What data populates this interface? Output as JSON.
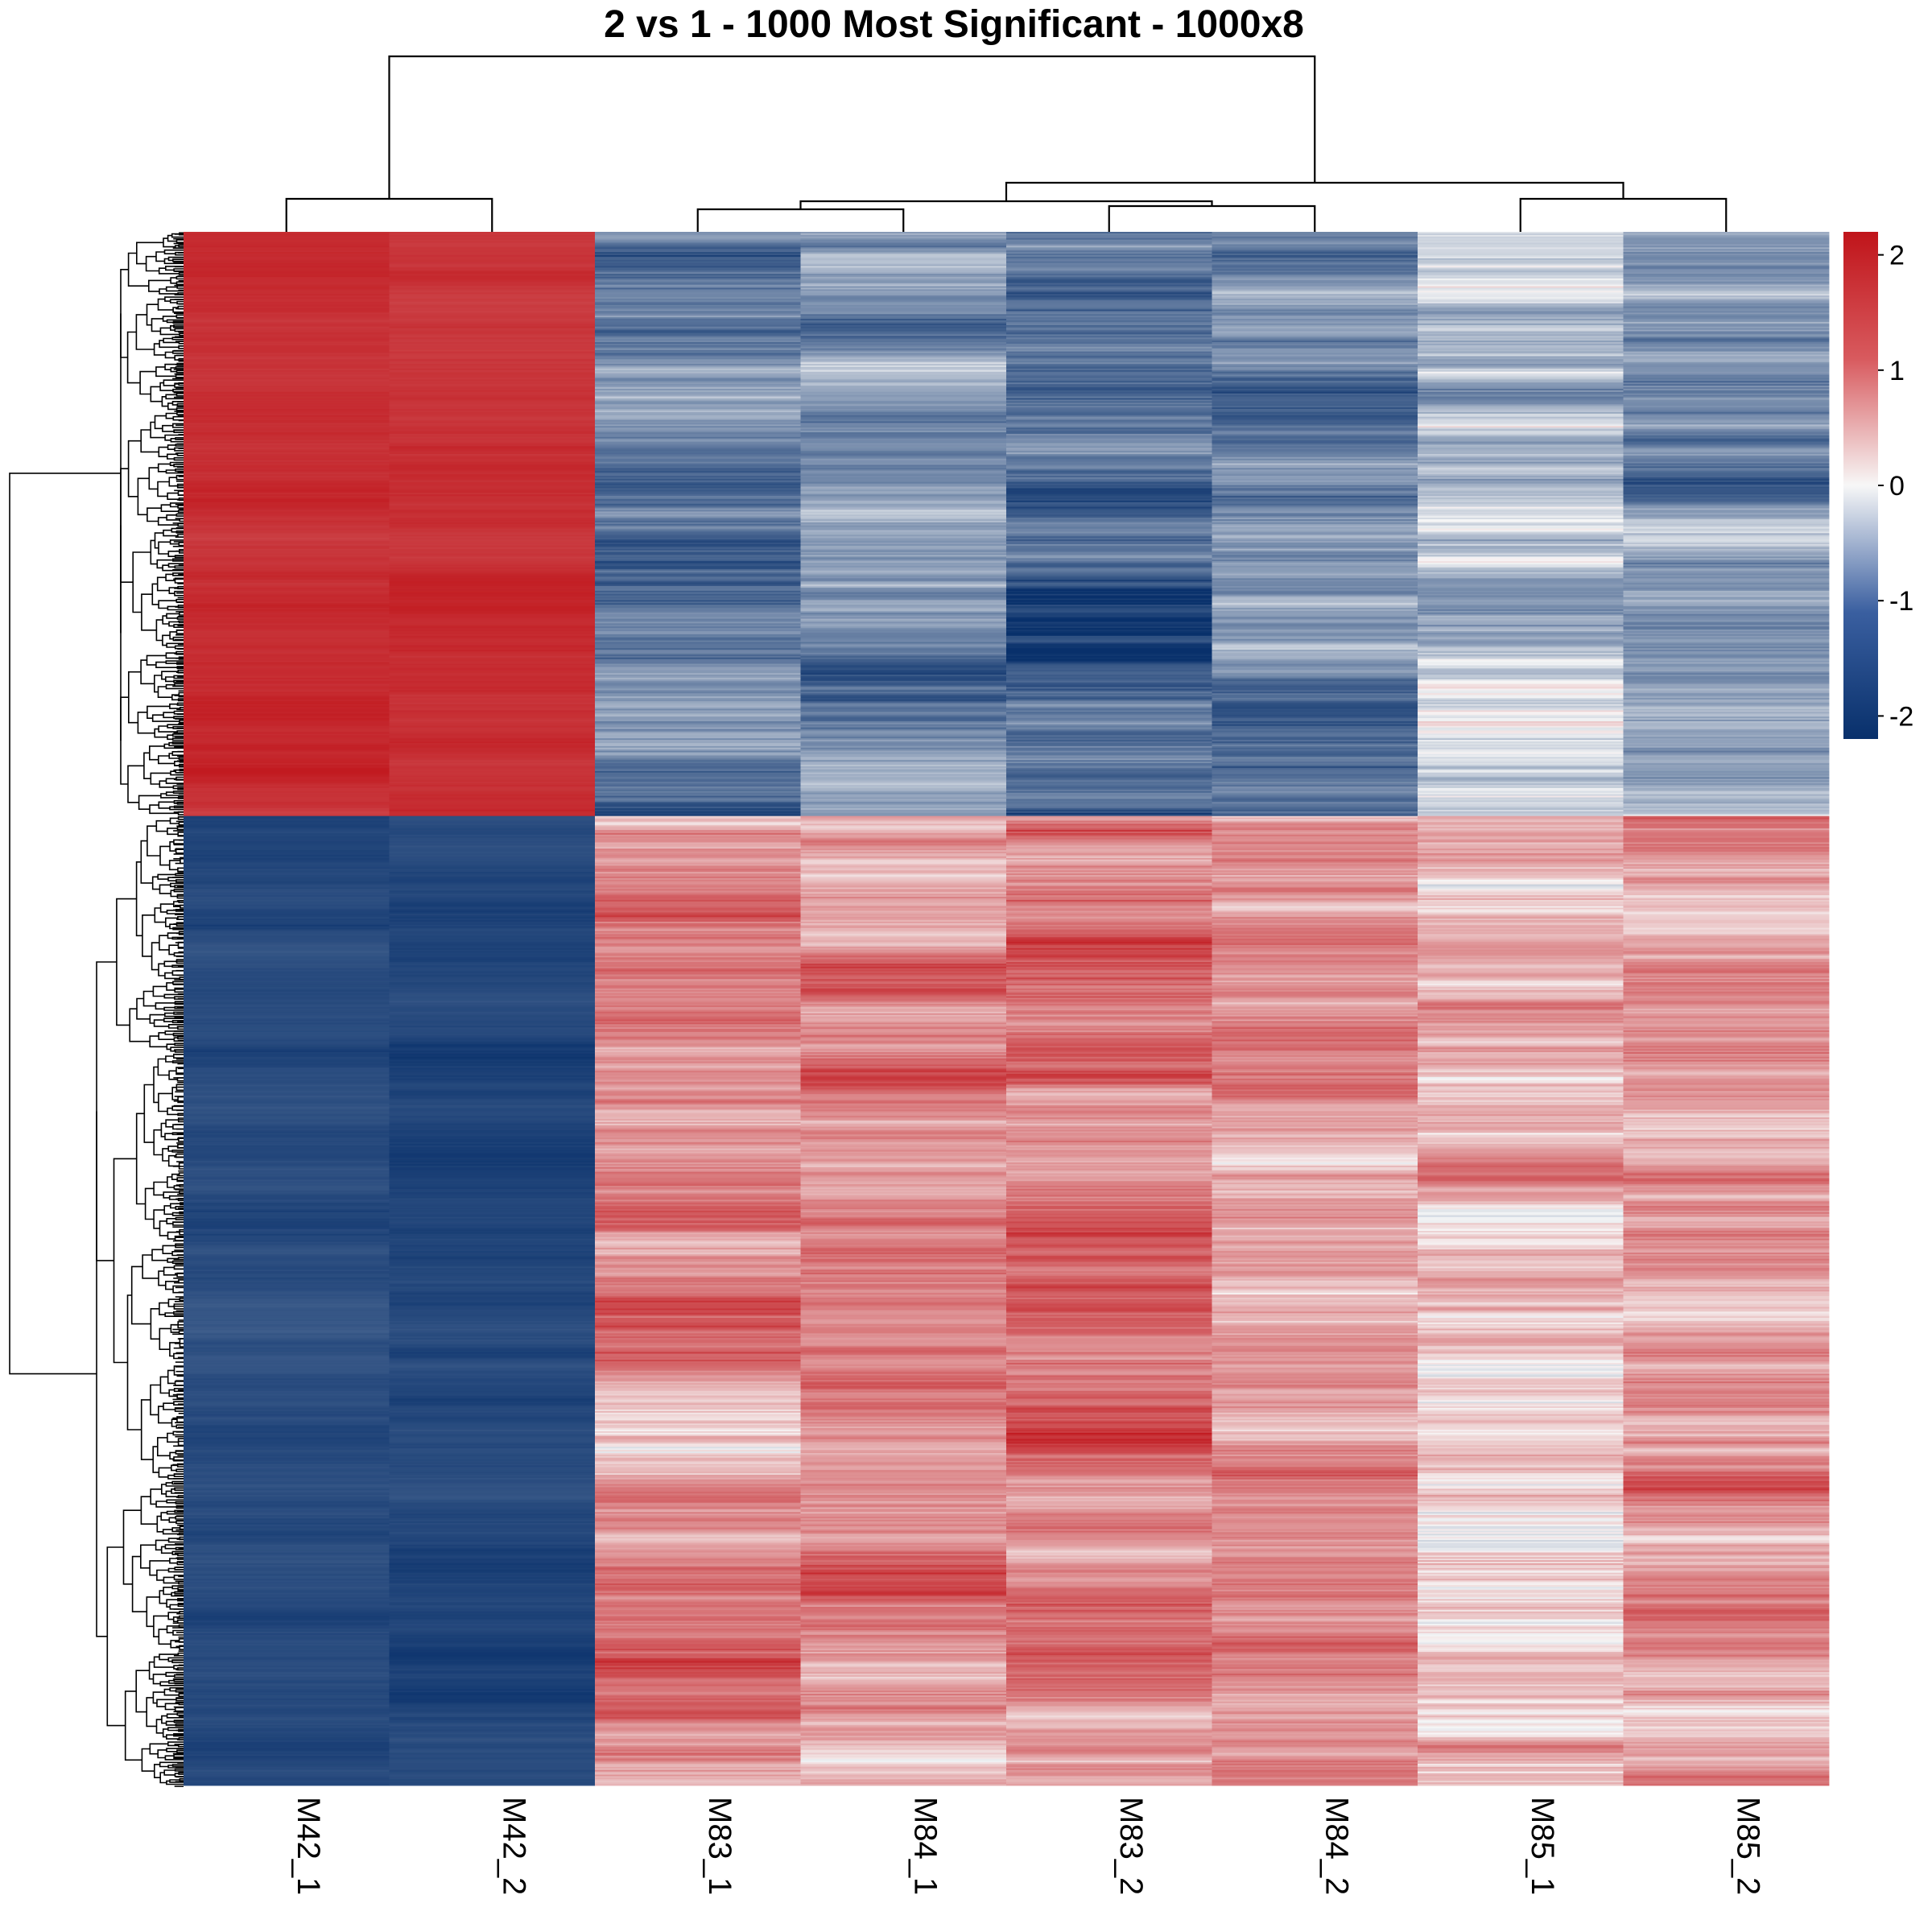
{
  "chart_data": {
    "type": "heatmap",
    "title": "2 vs 1 - 1000 Most Significant - 1000x8",
    "columns": [
      "M42_1",
      "M42_2",
      "M83_1",
      "M84_1",
      "M83_2",
      "M84_2",
      "M85_1",
      "M85_2"
    ],
    "n_rows": 1000,
    "row_clusters": [
      {
        "name": "upper",
        "rows": 376,
        "column_means": [
          1.9,
          1.85,
          -1.2,
          -0.9,
          -1.4,
          -1.1,
          -0.5,
          -0.8
        ]
      },
      {
        "name": "lower",
        "rows": 624,
        "column_means": [
          -1.85,
          -1.9,
          1.0,
          0.9,
          1.2,
          0.9,
          0.4,
          0.8
        ]
      }
    ],
    "column_dendrogram": "((M42_1,M42_2),(((M83_1,M84_1),(M83_2,M84_2)),(M85_1,M85_2)))",
    "row_dendrogram": "two main clusters",
    "colorbar": {
      "min": -2.2,
      "max": 2.2,
      "ticks": [
        "2",
        "1",
        "0",
        "-1",
        "-2"
      ],
      "tick_values": [
        2,
        1,
        0,
        -1,
        -2
      ],
      "colors": {
        "low": "#08306b",
        "mid": "#f7f7f7",
        "high": "#c0141a"
      }
    }
  }
}
